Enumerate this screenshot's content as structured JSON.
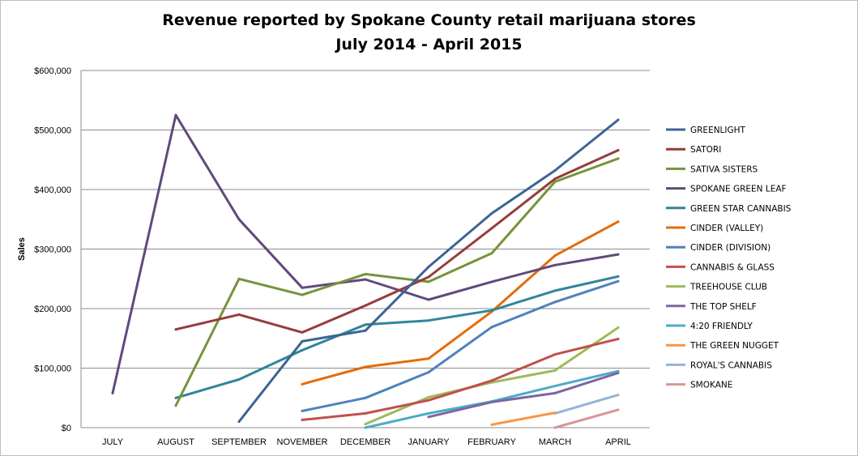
{
  "chart_data": {
    "type": "line",
    "title": "Revenue reported by Spokane County retail marijuana stores",
    "subtitle": "July 2014 - April 2015",
    "ylabel": "Sales",
    "xlabel": "",
    "ylim": [
      0,
      600000
    ],
    "yticks": [
      0,
      100000,
      200000,
      300000,
      400000,
      500000,
      600000
    ],
    "ytick_labels": [
      "$0",
      "$100,000",
      "$200,000",
      "$300,000",
      "$400,000",
      "$500,000",
      "$600,000"
    ],
    "categories": [
      "JULY",
      "AUGUST",
      "SEPTEMBER",
      "NOVEMBER",
      "DECEMBER",
      "JANUARY",
      "FEBRUARY",
      "MARCH",
      "APRIL"
    ],
    "grid": "horizontal",
    "legend_position": "right",
    "series": [
      {
        "name": "GREENLIGHT",
        "color": "#3c6494",
        "values": [
          null,
          null,
          10000,
          145000,
          163000,
          270000,
          360000,
          432000,
          517000
        ]
      },
      {
        "name": "SATORI",
        "color": "#963c3a",
        "values": [
          null,
          165000,
          190000,
          160000,
          205000,
          253000,
          335000,
          418000,
          466000
        ]
      },
      {
        "name": "SATIVA SISTERS",
        "color": "#76933c",
        "values": [
          null,
          37000,
          250000,
          223000,
          258000,
          245000,
          293000,
          413000,
          452000
        ]
      },
      {
        "name": "SPOKANE GREEN LEAF",
        "color": "#604a7b",
        "values": [
          58000,
          525000,
          350000,
          235000,
          249000,
          215000,
          245000,
          273000,
          291000
        ]
      },
      {
        "name": "GREEN STAR CANNABIS",
        "color": "#31859c",
        "values": [
          null,
          50000,
          81000,
          130000,
          173000,
          180000,
          197000,
          230000,
          254000
        ]
      },
      {
        "name": "CINDER (VALLEY)",
        "color": "#e46c0a",
        "values": [
          null,
          null,
          null,
          73000,
          102000,
          116000,
          195000,
          289000,
          346000
        ]
      },
      {
        "name": "CINDER (DIVISION)",
        "color": "#4f81bd",
        "values": [
          null,
          null,
          null,
          28000,
          50000,
          93000,
          169000,
          211000,
          246000
        ]
      },
      {
        "name": "CANNABIS & GLASS",
        "color": "#c0504d",
        "values": [
          null,
          null,
          null,
          13000,
          24000,
          46000,
          79000,
          123000,
          149000
        ]
      },
      {
        "name": "TREEHOUSE CLUB",
        "color": "#9bbb59",
        "values": [
          null,
          null,
          null,
          null,
          6000,
          51000,
          76000,
          96000,
          168000
        ]
      },
      {
        "name": "THE TOP SHELF",
        "color": "#8064a2",
        "values": [
          null,
          null,
          null,
          null,
          null,
          18000,
          43000,
          58000,
          92000
        ]
      },
      {
        "name": "4:20 FRIENDLY",
        "color": "#4bacc6",
        "values": [
          null,
          null,
          null,
          null,
          0,
          24000,
          44000,
          70000,
          95000
        ]
      },
      {
        "name": "THE GREEN  NUGGET",
        "color": "#f79646",
        "values": [
          null,
          null,
          null,
          null,
          null,
          null,
          5000,
          25000,
          null
        ]
      },
      {
        "name": "ROYAL'S CANNABIS",
        "color": "#95b3d7",
        "values": [
          null,
          null,
          null,
          null,
          null,
          null,
          null,
          24000,
          55000
        ]
      },
      {
        "name": "SMOKANE",
        "color": "#d99694",
        "values": [
          null,
          null,
          null,
          null,
          null,
          null,
          null,
          0,
          30000
        ]
      }
    ]
  }
}
